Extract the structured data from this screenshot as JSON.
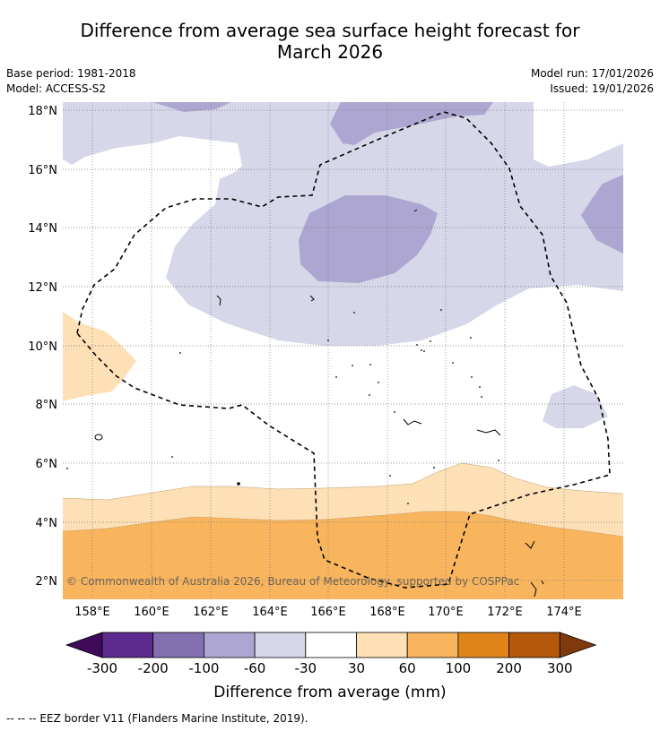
{
  "title_line1": "Difference from average sea surface height forecast for",
  "title_line2": "March 2026",
  "meta": {
    "base_period": "Base period: 1981-2018",
    "model": "Model: ACCESS-S2",
    "model_run": "Model run: 17/01/2026",
    "issued": "Issued: 19/01/2026"
  },
  "map": {
    "lon_range": [
      157,
      176
    ],
    "lat_range": [
      1.4,
      18.4
    ],
    "lon_ticks": [
      "158°E",
      "160°E",
      "162°E",
      "164°E",
      "166°E",
      "168°E",
      "170°E",
      "172°E",
      "174°E"
    ],
    "lat_ticks": [
      "2°N",
      "4°N",
      "6°N",
      "8°N",
      "10°N",
      "12°N",
      "14°N",
      "16°N",
      "18°N"
    ],
    "copyright": "© Commonwealth of Australia 2026, Bureau of Meteorology, supported by COSPPac"
  },
  "colorbar": {
    "labels": [
      "-300",
      "-200",
      "-100",
      "-60",
      "-30",
      "30",
      "60",
      "100",
      "200",
      "300"
    ],
    "colors": [
      "#3f0a5a",
      "#5b2a8c",
      "#8270b0",
      "#ada6d0",
      "#d7d7ea",
      "#ffffff",
      "#fde0b6",
      "#f9b55e",
      "#e0841a",
      "#b4580a",
      "#7f3a0b"
    ],
    "label": "Difference from average (mm)"
  },
  "footer": "--  --  -- EEZ border V11 (Flanders Marine Institute, 2019)."
}
